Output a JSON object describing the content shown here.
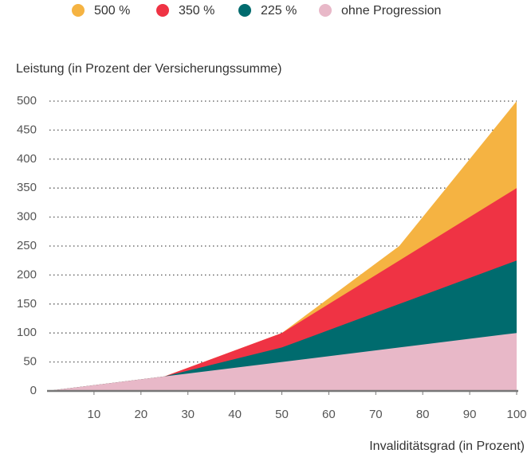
{
  "chart_data": {
    "type": "area",
    "ylabel": "Leistung (in Prozent der Versicherungssumme)",
    "xlabel": "Invaliditätsgrad (in Prozent)",
    "x": [
      0,
      25,
      50,
      75,
      100
    ],
    "series": [
      {
        "name": "500 %",
        "color": "#f5b342",
        "values": [
          0,
          25,
          100,
          250,
          500
        ]
      },
      {
        "name": "350 %",
        "color": "#ef3344",
        "values": [
          0,
          25,
          100,
          225,
          350
        ]
      },
      {
        "name": "225 %",
        "color": "#006b6e",
        "values": [
          0,
          25,
          75,
          150,
          225
        ]
      },
      {
        "name": "ohne Progression",
        "color": "#e8b8c8",
        "values": [
          0,
          25,
          50,
          75,
          100
        ]
      }
    ],
    "xlim": [
      0,
      100
    ],
    "xticks": [
      10,
      20,
      30,
      40,
      50,
      60,
      70,
      80,
      90,
      100
    ],
    "ylim": [
      0,
      500
    ],
    "yticks": [
      0,
      50,
      100,
      150,
      200,
      250,
      300,
      350,
      400,
      450,
      500
    ],
    "grid": true,
    "legend": "top"
  }
}
